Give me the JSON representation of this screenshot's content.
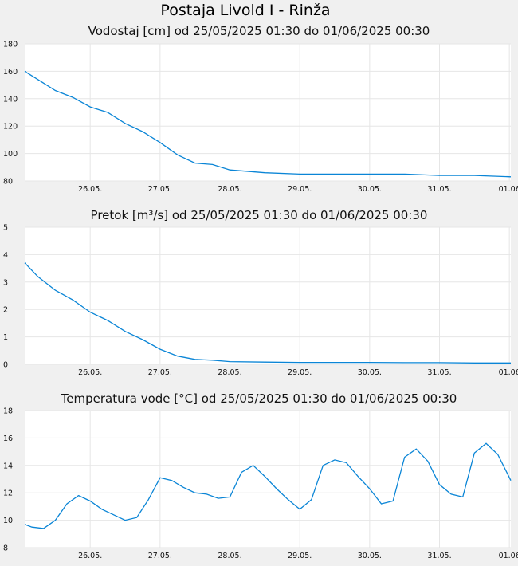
{
  "page": {
    "title": "Postaja Livold I - Rinža"
  },
  "colors": {
    "series": "#0a85d6",
    "plot_bg": "#ffffff",
    "grid": "#e6e6e6"
  },
  "chart_data": [
    {
      "type": "line",
      "title": "Vodostaj [cm] od 25/05/2025 01:30 do 01/06/2025 00:30",
      "xlabel": "",
      "ylabel": "",
      "x_ticks": [
        "26.05.",
        "27.05.",
        "28.05.",
        "29.05.",
        "30.05.",
        "31.05.",
        "01.06"
      ],
      "xlim": [
        "25/05/2025 01:30",
        "01/06/2025 00:30"
      ],
      "ylim": [
        80,
        180
      ],
      "y_ticks": [
        80,
        100,
        120,
        140,
        160,
        180
      ],
      "grid": true,
      "series": [
        {
          "x": [
            "25/05 01:30",
            "25/05 06:00",
            "25/05 12:00",
            "25/05 18:00",
            "26/05 00:00",
            "26/05 06:00",
            "26/05 12:00",
            "26/05 18:00",
            "27/05 00:00",
            "27/05 06:00",
            "27/05 12:00",
            "27/05 18:00",
            "28/05 00:00",
            "28/05 12:00",
            "29/05 00:00",
            "29/05 12:00",
            "30/05 00:00",
            "30/05 12:00",
            "31/05 00:00",
            "31/05 12:00",
            "01/06 00:30"
          ],
          "y": [
            160,
            154,
            146,
            141,
            134,
            130,
            122,
            116,
            108,
            99,
            93,
            92,
            88,
            86,
            85,
            85,
            85,
            85,
            84,
            84,
            83
          ]
        }
      ]
    },
    {
      "type": "line",
      "title": "Pretok [m³/s] od 25/05/2025 01:30 do 01/06/2025 00:30",
      "xlabel": "",
      "ylabel": "",
      "x_ticks": [
        "26.05.",
        "27.05.",
        "28.05.",
        "29.05.",
        "30.05.",
        "31.05.",
        "01.06"
      ],
      "xlim": [
        "25/05/2025 01:30",
        "01/06/2025 00:30"
      ],
      "ylim": [
        0,
        5
      ],
      "y_ticks": [
        0,
        1,
        2,
        3,
        4,
        5
      ],
      "grid": true,
      "series": [
        {
          "x": [
            "25/05 01:30",
            "25/05 06:00",
            "25/05 12:00",
            "25/05 18:00",
            "26/05 00:00",
            "26/05 06:00",
            "26/05 12:00",
            "26/05 18:00",
            "27/05 00:00",
            "27/05 06:00",
            "27/05 12:00",
            "27/05 18:00",
            "28/05 00:00",
            "28/05 12:00",
            "29/05 00:00",
            "29/05 12:00",
            "30/05 00:00",
            "30/05 12:00",
            "31/05 00:00",
            "31/05 12:00",
            "01/06 00:30"
          ],
          "y": [
            3.7,
            3.2,
            2.7,
            2.35,
            1.9,
            1.6,
            1.2,
            0.9,
            0.55,
            0.3,
            0.18,
            0.15,
            0.1,
            0.08,
            0.07,
            0.07,
            0.07,
            0.06,
            0.06,
            0.05,
            0.05
          ]
        }
      ]
    },
    {
      "type": "line",
      "title": "Temperatura vode [°C] od 25/05/2025 01:30 do 01/06/2025 00:30",
      "xlabel": "",
      "ylabel": "",
      "x_ticks": [
        "26.05.",
        "27.05.",
        "28.05.",
        "29.05.",
        "30.05.",
        "31.05.",
        "01.06"
      ],
      "xlim": [
        "25/05/2025 01:30",
        "01/06/2025 00:30"
      ],
      "ylim": [
        8,
        18
      ],
      "y_ticks": [
        8,
        10,
        12,
        14,
        16,
        18
      ],
      "grid": true,
      "series": [
        {
          "x": [
            "25/05 01:30",
            "25/05 04:00",
            "25/05 08:00",
            "25/05 12:00",
            "25/05 16:00",
            "25/05 20:00",
            "26/05 00:00",
            "26/05 04:00",
            "26/05 08:00",
            "26/05 12:00",
            "26/05 16:00",
            "26/05 20:00",
            "27/05 00:00",
            "27/05 04:00",
            "27/05 08:00",
            "27/05 12:00",
            "27/05 16:00",
            "27/05 20:00",
            "28/05 00:00",
            "28/05 04:00",
            "28/05 08:00",
            "28/05 12:00",
            "28/05 16:00",
            "28/05 20:00",
            "29/05 00:00",
            "29/05 04:00",
            "29/05 08:00",
            "29/05 12:00",
            "29/05 16:00",
            "29/05 20:00",
            "30/05 00:00",
            "30/05 04:00",
            "30/05 08:00",
            "30/05 12:00",
            "30/05 16:00",
            "30/05 20:00",
            "31/05 00:00",
            "31/05 04:00",
            "31/05 08:00",
            "31/05 12:00",
            "31/05 16:00",
            "31/05 20:00",
            "01/06 00:30"
          ],
          "y": [
            9.7,
            9.5,
            9.4,
            10.0,
            11.2,
            11.8,
            11.4,
            10.8,
            10.4,
            10.0,
            10.2,
            11.5,
            13.1,
            12.9,
            12.4,
            12.0,
            11.9,
            11.6,
            11.7,
            13.5,
            14.0,
            13.2,
            12.3,
            11.5,
            10.8,
            11.5,
            14.0,
            14.4,
            14.2,
            13.2,
            12.3,
            11.2,
            11.4,
            14.6,
            15.2,
            14.3,
            12.6,
            11.9,
            11.7,
            14.9,
            15.6,
            14.8,
            12.9
          ]
        }
      ]
    }
  ]
}
